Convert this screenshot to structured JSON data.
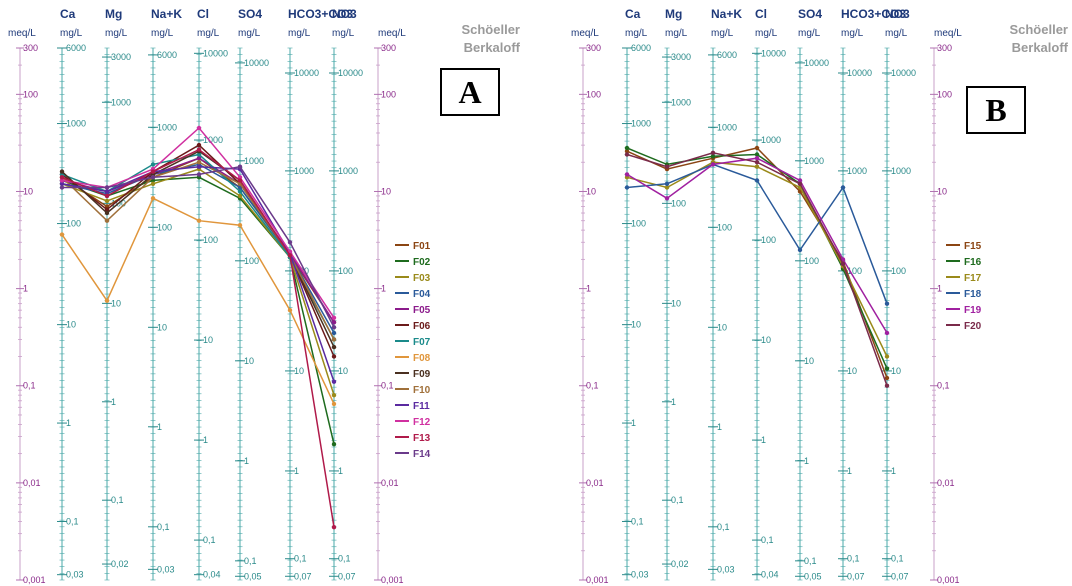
{
  "header": {
    "meq_label": "meq/L",
    "unit_label": "mg/L",
    "brand_line1": "Schöeller",
    "brand_line2": "Berkaloff"
  },
  "axes": [
    {
      "title": "Ca",
      "ticks": [
        "6000",
        "1000",
        "100",
        "10",
        "1",
        "0,1",
        "0,03"
      ]
    },
    {
      "title": "Mg",
      "ticks": [
        "3000",
        "1000",
        "100",
        "10",
        "1",
        "0,1",
        "0,02"
      ]
    },
    {
      "title": "Na+K",
      "ticks": [
        "6000",
        "1000",
        "100",
        "10",
        "1",
        "0,1",
        "0,03"
      ]
    },
    {
      "title": "Cl",
      "ticks": [
        "10000",
        "1000",
        "100",
        "10",
        "1",
        "0,1",
        "0,04"
      ]
    },
    {
      "title": "SO4",
      "ticks": [
        "10000",
        "1000",
        "100",
        "10",
        "1",
        "0,1",
        "0,05"
      ]
    },
    {
      "title": "HCO3+CO3",
      "ticks": [
        "10000",
        "1000",
        "100",
        "10",
        "1",
        "0,1",
        "0,07"
      ]
    },
    {
      "title": "NO3",
      "ticks": [
        "10000",
        "1000",
        "100",
        "10",
        "1",
        "0,1",
        "0,07"
      ]
    }
  ],
  "meq_ticks": [
    "300",
    "100",
    "10",
    "1",
    "0,1",
    "0,01",
    "0,001"
  ],
  "panels": [
    {
      "label": "A"
    },
    {
      "label": "B"
    }
  ],
  "chart_data": [
    {
      "type": "line",
      "categories": [
        "Ca",
        "Mg",
        "Na+K",
        "Cl",
        "SO4",
        "HCO3+CO3",
        "NO3"
      ],
      "ylabel": "meq/L",
      "scale": "log",
      "ylim": [
        0.001,
        300
      ],
      "series": [
        {
          "name": "F01",
          "color": "#8b4513",
          "values": [
            14,
            7,
            14,
            22,
            11,
            2.2,
            0.45
          ]
        },
        {
          "name": "F02",
          "color": "#1e6b1e",
          "values": [
            13,
            9,
            13,
            14,
            8.5,
            2.1,
            0.025
          ]
        },
        {
          "name": "F03",
          "color": "#9a8a1a",
          "values": [
            12,
            8,
            12,
            17,
            9,
            2.1,
            0.08
          ]
        },
        {
          "name": "F04",
          "color": "#2a5a9a",
          "values": [
            12,
            9.5,
            15,
            19,
            11,
            2.2,
            0.35
          ]
        },
        {
          "name": "F05",
          "color": "#8b1a8b",
          "values": [
            13,
            10,
            15,
            22,
            12,
            2.3,
            0.45
          ]
        },
        {
          "name": "F06",
          "color": "#6b1a1a",
          "values": [
            15,
            6.5,
            16,
            30,
            12,
            2.2,
            0.2
          ]
        },
        {
          "name": "F07",
          "color": "#1a8a8a",
          "values": [
            15,
            10,
            19,
            24,
            10,
            2.1,
            0.3
          ]
        },
        {
          "name": "F08",
          "color": "#e0963c",
          "values": [
            3.6,
            0.75,
            8.5,
            5,
            4.5,
            0.6,
            0.065
          ]
        },
        {
          "name": "F09",
          "color": "#4a3020",
          "values": [
            16,
            6,
            15,
            26,
            13,
            2.2,
            0.25
          ]
        },
        {
          "name": "F10",
          "color": "#a0703a",
          "values": [
            14,
            5,
            14,
            20,
            12,
            2.2,
            0.3
          ]
        },
        {
          "name": "F11",
          "color": "#5a2aa0",
          "values": [
            12,
            10,
            16,
            18,
            17,
            2.3,
            0.11
          ]
        },
        {
          "name": "F12",
          "color": "#d030a0",
          "values": [
            13,
            11,
            17,
            45,
            14,
            2.4,
            0.5
          ]
        },
        {
          "name": "F13",
          "color": "#b01a4a",
          "values": [
            14,
            9,
            16,
            27,
            13,
            2.2,
            0.0035
          ]
        },
        {
          "name": "F14",
          "color": "#6a3a8a",
          "values": [
            11,
            11,
            14,
            15,
            18,
            3,
            0.4
          ]
        }
      ]
    },
    {
      "type": "line",
      "categories": [
        "Ca",
        "Mg",
        "Na+K",
        "Cl",
        "SO4",
        "HCO3+CO3",
        "NO3"
      ],
      "ylabel": "meq/L",
      "scale": "log",
      "ylim": [
        0.001,
        300
      ],
      "series": [
        {
          "name": "F15",
          "color": "#8b4513",
          "values": [
            26,
            17,
            22,
            28,
            10,
            1.9,
            0.12
          ]
        },
        {
          "name": "F16",
          "color": "#1e6b1e",
          "values": [
            28,
            19,
            23,
            24,
            12,
            1.6,
            0.15
          ]
        },
        {
          "name": "F17",
          "color": "#9a8a1a",
          "values": [
            14,
            11,
            20,
            18,
            11,
            1.7,
            0.2
          ]
        },
        {
          "name": "F18",
          "color": "#2a5a9a",
          "values": [
            11,
            12,
            19,
            13,
            2.5,
            11,
            0.7
          ]
        },
        {
          "name": "F19",
          "color": "#a020a0",
          "values": [
            15,
            8.5,
            19,
            22,
            13,
            2,
            0.35
          ]
        },
        {
          "name": "F20",
          "color": "#7a2a4a",
          "values": [
            24,
            18,
            25,
            20,
            12,
            1.8,
            0.1
          ]
        }
      ]
    }
  ]
}
